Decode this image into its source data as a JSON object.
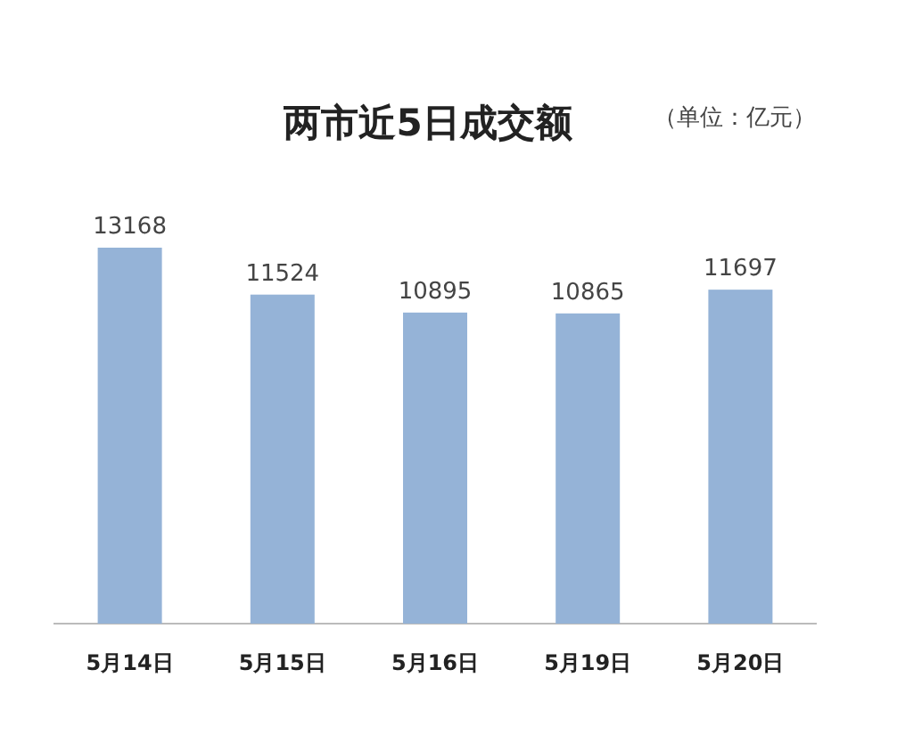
{
  "chart_data": {
    "type": "bar",
    "title": "两市近5日成交额",
    "annotations": [
      "（单位：亿元）"
    ],
    "categories": [
      "5月14日",
      "5月15日",
      "5月16日",
      "5月19日",
      "5月20日"
    ],
    "values": [
      13168,
      11524,
      10895,
      10865,
      11697
    ],
    "color": "#95b3d7",
    "data_labels": true
  }
}
